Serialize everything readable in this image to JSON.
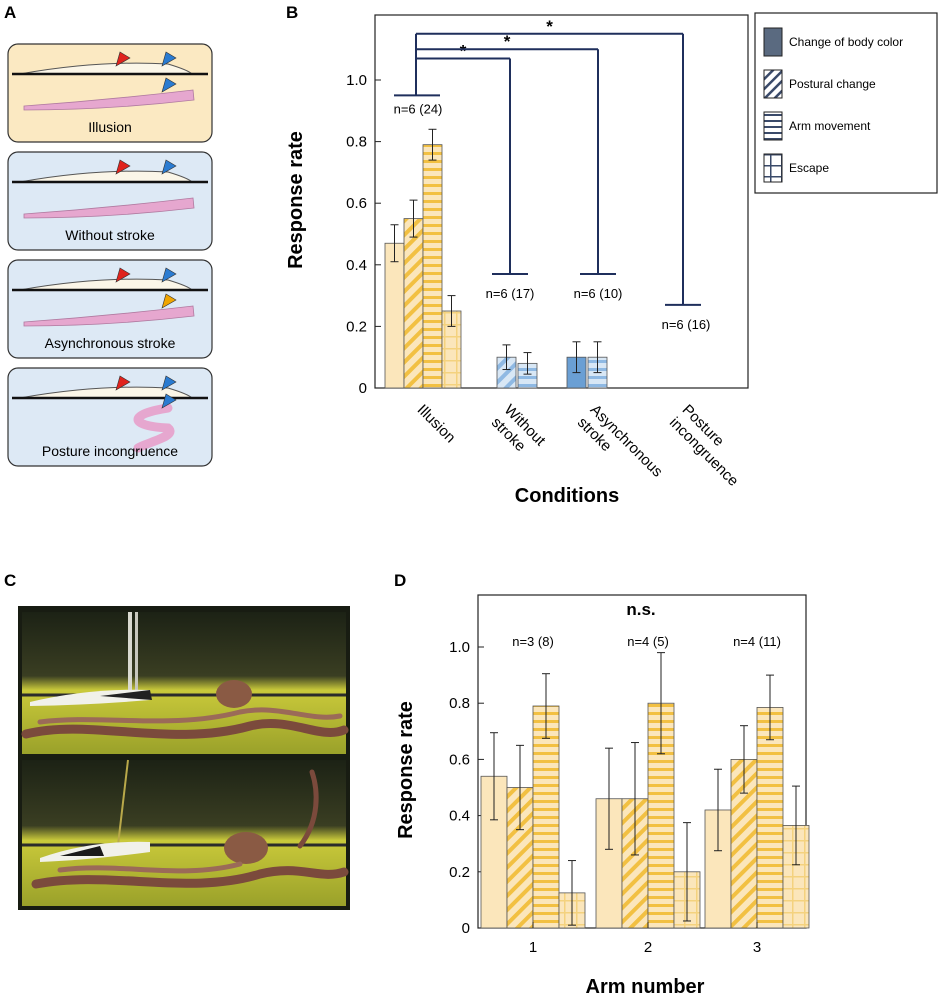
{
  "panel_labels": {
    "a": "A",
    "b": "B",
    "c": "C",
    "d": "D"
  },
  "schematics": [
    {
      "label": "Illusion",
      "bg": "#fbe9c2",
      "posture": "straight",
      "lower_marker_color": "#2a7bd1"
    },
    {
      "label": "Without stroke",
      "bg": "#dde9f5",
      "posture": "straight",
      "lower_marker_color": "none"
    },
    {
      "label": "Asynchronous stroke",
      "bg": "#dde9f5",
      "posture": "straight",
      "lower_marker_color": "#f0a500"
    },
    {
      "label": "Posture incongruence",
      "bg": "#dde9f5",
      "posture": "curled",
      "lower_marker_color": "#2a7bd1"
    }
  ],
  "colors": {
    "illusion_fill": "#fbe6bb",
    "illusion_stripe": "#f2c042",
    "control_fill": "#d8e7f5",
    "control_stripe": "#8fb9e3",
    "body_color_dark": "#6a9fd4",
    "bracket": "#1f2f5c",
    "tentacle": "#e6a7cf",
    "red_marker": "#e0231d",
    "blue_marker": "#2a7bd1"
  },
  "chart_data": [
    {
      "panel": "B",
      "type": "bar",
      "categories": [
        "Illusion",
        "Without stroke",
        "Asynchronous stroke",
        "Posture incongruence"
      ],
      "category_lines": [
        [
          "Illusion"
        ],
        [
          "Without",
          "stroke"
        ],
        [
          "Asynchronous",
          "stroke"
        ],
        [
          "Posture",
          "incongruence"
        ]
      ],
      "series": [
        {
          "name": "Change of body color",
          "pattern": "solid",
          "values": [
            0.47,
            0.0,
            0.1,
            0.0
          ],
          "errors": [
            0.06,
            0.0,
            0.05,
            0.0
          ]
        },
        {
          "name": "Postural change",
          "pattern": "diagonal",
          "values": [
            0.55,
            0.1,
            0.0,
            0.0
          ],
          "errors": [
            0.06,
            0.04,
            0.0,
            0.0
          ]
        },
        {
          "name": "Arm movement",
          "pattern": "horizontal",
          "values": [
            0.79,
            0.08,
            0.1,
            0.0
          ],
          "errors": [
            0.05,
            0.035,
            0.05,
            0.0
          ]
        },
        {
          "name": "Escape",
          "pattern": "grid",
          "values": [
            0.25,
            0.0,
            0.0,
            0.0
          ],
          "errors": [
            0.05,
            0.0,
            0.0,
            0.0
          ]
        }
      ],
      "n_labels": [
        "n=6 (24)",
        "n=6 (17)",
        "n=6 (10)",
        "n=6 (16)"
      ],
      "bracket_levels": [
        0.95,
        0.37,
        0.37,
        0.27
      ],
      "significance": [
        {
          "from": "Illusion",
          "to": "Without stroke",
          "label": "*",
          "y": 1.07
        },
        {
          "from": "Illusion",
          "to": "Asynchronous stroke",
          "label": "*",
          "y": 1.1
        },
        {
          "from": "Illusion",
          "to": "Posture incongruence",
          "label": "*",
          "y": 1.15
        }
      ],
      "ylabel": "Response rate",
      "xlabel": "Conditions",
      "ylim": [
        0,
        1.2
      ],
      "yticks": [
        "0",
        "0.2",
        "0.4",
        "0.6",
        "0.8",
        "1.0"
      ],
      "legend_placement": "right"
    },
    {
      "panel": "D",
      "type": "bar",
      "categories": [
        "1",
        "2",
        "3"
      ],
      "series": [
        {
          "name": "Change of body color",
          "pattern": "solid",
          "values": [
            0.54,
            0.46,
            0.42
          ],
          "errors": [
            0.155,
            0.18,
            0.145
          ]
        },
        {
          "name": "Postural change",
          "pattern": "diagonal",
          "values": [
            0.5,
            0.46,
            0.6
          ],
          "errors": [
            0.15,
            0.2,
            0.12
          ]
        },
        {
          "name": "Arm movement",
          "pattern": "horizontal",
          "values": [
            0.79,
            0.8,
            0.785
          ],
          "errors": [
            0.115,
            0.18,
            0.115
          ]
        },
        {
          "name": "Escape",
          "pattern": "grid",
          "values": [
            0.125,
            0.2,
            0.365
          ],
          "errors": [
            0.115,
            0.175,
            0.14
          ]
        }
      ],
      "n_labels": [
        "n=3 (8)",
        "n=4 (5)",
        "n=4 (11)"
      ],
      "annotation": "n.s.",
      "ylabel": "Response rate",
      "xlabel": "Arm number",
      "ylim": [
        0,
        1.2
      ],
      "yticks": [
        "0",
        "0.2",
        "0.4",
        "0.6",
        "0.8",
        "1.0"
      ]
    }
  ]
}
